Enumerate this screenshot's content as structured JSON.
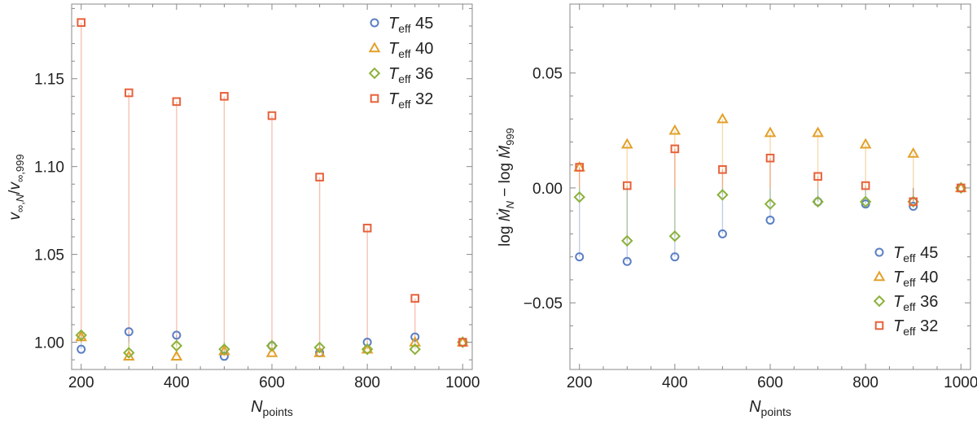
{
  "chart_data": [
    {
      "type": "scatter",
      "title": "",
      "xlabel": "N",
      "xlabel_sub": "points",
      "ylabel": "v∞,N/v∞,999",
      "xlim": [
        180,
        1020
      ],
      "ylim": [
        0.9845,
        1.1925
      ],
      "xticks": [
        200,
        400,
        600,
        800,
        1000
      ],
      "xtick_labels": [
        "200",
        "400",
        "600",
        "800",
        "1000"
      ],
      "yticks": [
        1.0,
        1.05,
        1.1,
        1.15
      ],
      "ytick_labels": [
        "1.00",
        "1.05",
        "1.10",
        "1.15"
      ],
      "legend_position": "top-right",
      "x": [
        200,
        300,
        400,
        500,
        600,
        700,
        800,
        900,
        1000
      ],
      "series": [
        {
          "name": "T",
          "name_sub": "eff",
          "name_value": "45",
          "marker": "circle",
          "color": "#5b7fc4",
          "values": [
            0.996,
            1.006,
            1.004,
            0.992,
            0.998,
            0.994,
            1.0,
            1.003,
            1.0
          ]
        },
        {
          "name": "T",
          "name_sub": "eff",
          "name_value": "40",
          "marker": "triangle",
          "color": "#e3a02a",
          "values": [
            1.003,
            0.992,
            0.992,
            0.995,
            0.994,
            0.994,
            0.996,
            1.0,
            1.0
          ]
        },
        {
          "name": "T",
          "name_sub": "eff",
          "name_value": "36",
          "marker": "diamond",
          "color": "#8cb13a",
          "values": [
            1.004,
            0.994,
            0.998,
            0.996,
            0.998,
            0.997,
            0.996,
            0.996,
            1.0
          ]
        },
        {
          "name": "T",
          "name_sub": "eff",
          "name_value": "32",
          "marker": "square",
          "color": "#e8613b",
          "values": [
            1.182,
            1.142,
            1.137,
            1.14,
            1.129,
            1.094,
            1.065,
            1.025,
            1.0
          ]
        }
      ]
    },
    {
      "type": "scatter",
      "title": "",
      "xlabel": "N",
      "xlabel_sub": "points",
      "ylabel": "log Ṁ_N − log Ṁ_999",
      "ylabel_parts": {
        "log": "log",
        "m": "M",
        "sub_n": "N",
        "minus": " − ",
        "sub_999": "999"
      },
      "xlim": [
        180,
        1020
      ],
      "ylim": [
        -0.079,
        0.08
      ],
      "xticks": [
        200,
        400,
        600,
        800,
        1000
      ],
      "xtick_labels": [
        "200",
        "400",
        "600",
        "800",
        "1000"
      ],
      "yticks": [
        -0.05,
        0.0,
        0.05
      ],
      "ytick_labels": [
        "−0.05",
        "0.00",
        "0.05"
      ],
      "legend_position": "bottom-right",
      "x": [
        200,
        300,
        400,
        500,
        600,
        700,
        800,
        900,
        1000
      ],
      "series": [
        {
          "name": "T",
          "name_sub": "eff",
          "name_value": "45",
          "marker": "circle",
          "color": "#5b7fc4",
          "values": [
            -0.03,
            -0.032,
            -0.03,
            -0.02,
            -0.014,
            -0.006,
            -0.007,
            -0.008,
            0.0
          ]
        },
        {
          "name": "T",
          "name_sub": "eff",
          "name_value": "40",
          "marker": "triangle",
          "color": "#e3a02a",
          "values": [
            0.009,
            0.019,
            0.025,
            0.03,
            0.024,
            0.024,
            0.019,
            0.015,
            0.0
          ]
        },
        {
          "name": "T",
          "name_sub": "eff",
          "name_value": "36",
          "marker": "diamond",
          "color": "#8cb13a",
          "values": [
            -0.004,
            -0.023,
            -0.021,
            -0.003,
            -0.007,
            -0.006,
            -0.006,
            -0.006,
            0.0
          ]
        },
        {
          "name": "T",
          "name_sub": "eff",
          "name_value": "32",
          "marker": "square",
          "color": "#e8613b",
          "values": [
            0.009,
            0.001,
            0.017,
            0.008,
            0.013,
            0.005,
            0.001,
            -0.006,
            0.0
          ]
        }
      ]
    }
  ]
}
